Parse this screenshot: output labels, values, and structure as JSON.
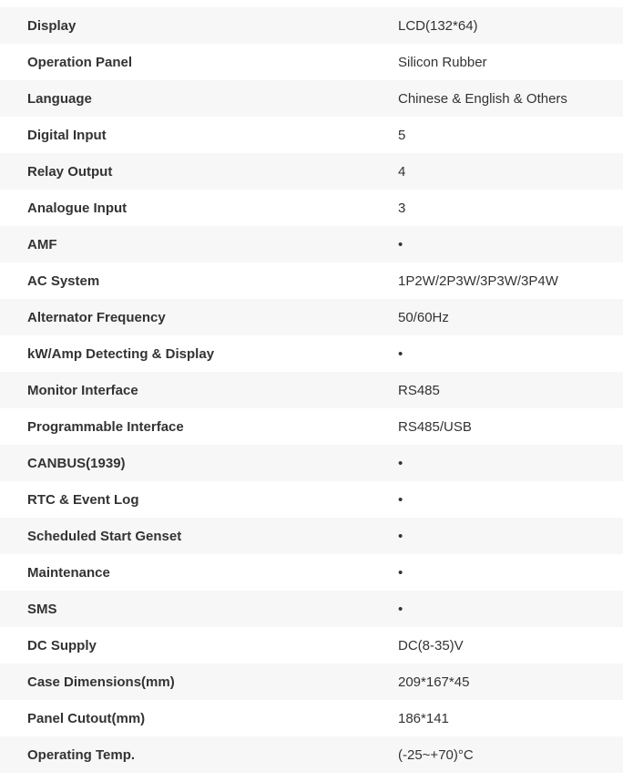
{
  "colors": {
    "row_alt_bg": "#f7f7f7",
    "row_bg": "#ffffff",
    "text": "#333333"
  },
  "table": {
    "name": "controller-specifications",
    "bullet_meaning": "feature-included-dot",
    "rows": [
      {
        "label": "Display",
        "value": "LCD(132*64)"
      },
      {
        "label": "Operation Panel",
        "value": "Silicon Rubber"
      },
      {
        "label": "Language",
        "value": "Chinese & English & Others"
      },
      {
        "label": "Digital Input",
        "value": "5"
      },
      {
        "label": "Relay Output",
        "value": "4"
      },
      {
        "label": "Analogue Input",
        "value": "3"
      },
      {
        "label": "AMF",
        "value": "•"
      },
      {
        "label": "AC System",
        "value": "1P2W/2P3W/3P3W/3P4W"
      },
      {
        "label": "Alternator Frequency",
        "value": "50/60Hz"
      },
      {
        "label": "kW/Amp Detecting & Display",
        "value": "•"
      },
      {
        "label": "Monitor Interface",
        "value": "RS485"
      },
      {
        "label": "Programmable Interface",
        "value": "RS485/USB"
      },
      {
        "label": "CANBUS(1939)",
        "value": "•"
      },
      {
        "label": "RTC & Event Log",
        "value": "•"
      },
      {
        "label": "Scheduled Start Genset",
        "value": "•"
      },
      {
        "label": "Maintenance",
        "value": "•"
      },
      {
        "label": "SMS",
        "value": "•"
      },
      {
        "label": "DC Supply",
        "value": "DC(8-35)V"
      },
      {
        "label": "Case Dimensions(mm)",
        "value": "209*167*45"
      },
      {
        "label": "Panel Cutout(mm)",
        "value": "186*141"
      },
      {
        "label": "Operating Temp.",
        "value": "(-25~+70)°C"
      }
    ]
  }
}
